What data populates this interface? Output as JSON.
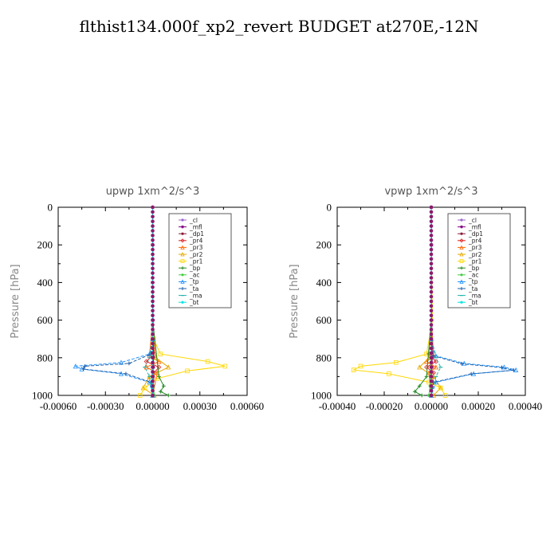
{
  "figure_title": "flthist134.000f_xp2_revert  BUDGET at270E,-12N",
  "chart_data": [
    {
      "type": "line",
      "title": "upwp   1xm^2/s^3",
      "xlabel": "",
      "ylabel": "Pressure  [hPa]",
      "xlim": [
        -0.0006,
        0.0006
      ],
      "ylim": [
        1000,
        0
      ],
      "xticks": [
        "-0.00060",
        "-0.00030",
        "0.00000",
        "0.00030",
        "0.00060"
      ],
      "yticks": [
        "0",
        "200",
        "400",
        "600",
        "800",
        "1000"
      ],
      "legend_position": "top-right",
      "series": [
        {
          "name": "_cl",
          "color": "#9966cc",
          "x": [
            0,
            2e-06,
            0,
            4e-06,
            5e-06,
            0,
            -4e-06,
            0
          ],
          "y": [
            0,
            200,
            400,
            600,
            800,
            850,
            900,
            1000
          ]
        },
        {
          "name": "_mfl",
          "color": "#800080",
          "x": [
            0,
            0,
            0,
            0,
            5e-06,
            4e-06,
            0,
            0
          ],
          "y": [
            0,
            200,
            400,
            600,
            800,
            850,
            900,
            1000
          ]
        },
        {
          "name": "_dp1",
          "color": "#8b1a3a",
          "x": [
            0,
            0,
            0,
            0,
            4e-06,
            3e-06,
            2e-06,
            0
          ],
          "y": [
            0,
            200,
            400,
            600,
            800,
            850,
            900,
            1000
          ]
        },
        {
          "name": "_pr4",
          "color": "#dd2222",
          "x": [
            0,
            0,
            0,
            0,
            1e-05,
            -4e-05,
            4e-05,
            1e-05,
            0
          ],
          "y": [
            0,
            200,
            400,
            600,
            780,
            820,
            850,
            880,
            1000
          ]
        },
        {
          "name": "_pr3",
          "color": "#ff6600",
          "x": [
            0,
            0,
            0,
            0,
            -2e-05,
            4e-05,
            -4e-05,
            3e-05,
            0
          ],
          "y": [
            0,
            200,
            400,
            600,
            790,
            820,
            850,
            880,
            1000
          ]
        },
        {
          "name": "_pr2",
          "color": "#e6a800",
          "x": [
            0,
            0,
            0,
            0,
            2e-05,
            0.0001,
            -2e-05,
            -6e-05,
            1e-05
          ],
          "y": [
            0,
            200,
            400,
            600,
            800,
            850,
            900,
            960,
            1000
          ]
        },
        {
          "name": "_pr1",
          "color": "#ffd700",
          "x": [
            0,
            0,
            5e-06,
            5e-05,
            0.00035,
            0.00046,
            0.00022,
            3e-05,
            -5e-05,
            -8e-05
          ],
          "y": [
            0,
            400,
            700,
            780,
            820,
            845,
            870,
            910,
            960,
            1000
          ]
        },
        {
          "name": "_bp",
          "color": "#228b22",
          "x": [
            0,
            0,
            0,
            0,
            4e-05,
            7e-05,
            5e-05,
            0.0001
          ],
          "y": [
            0,
            200,
            400,
            600,
            900,
            950,
            980,
            1000
          ]
        },
        {
          "name": "_ac",
          "color": "#44cc44",
          "x": [
            0,
            0,
            0,
            0,
            0,
            5e-06,
            1e-05
          ],
          "y": [
            0,
            200,
            400,
            600,
            800,
            950,
            1000
          ]
        },
        {
          "name": "_tp",
          "color": "#1e90ff",
          "x": [
            0,
            0,
            0,
            -2e-05,
            -0.0002,
            -0.00049,
            -0.00045,
            -0.0002,
            -2e-05,
            0
          ],
          "y": [
            0,
            400,
            700,
            780,
            825,
            845,
            860,
            885,
            930,
            1000
          ]
        },
        {
          "name": "_ta",
          "color": "#1f5fa8",
          "x": [
            0,
            0,
            0,
            -1e-05,
            -0.00015,
            -0.00043,
            -0.00044,
            -0.00017,
            -1e-05,
            0
          ],
          "y": [
            0,
            400,
            700,
            780,
            830,
            845,
            860,
            885,
            930,
            1000
          ]
        },
        {
          "name": "_ma",
          "color": "#20b2aa",
          "x": [
            0,
            0,
            0,
            -2e-05,
            -5e-05,
            -2e-05,
            0
          ],
          "y": [
            0,
            400,
            700,
            800,
            850,
            900,
            1000
          ]
        },
        {
          "name": "_bt",
          "color": "#00e5e5",
          "x": [
            0,
            0,
            0,
            0,
            0,
            0
          ],
          "y": [
            0,
            200,
            400,
            600,
            800,
            1000
          ]
        }
      ]
    },
    {
      "type": "line",
      "title": "vpwp   1xm^2/s^3",
      "xlabel": "",
      "ylabel": "Pressure  [hPa]",
      "xlim": [
        -0.0004,
        0.0004
      ],
      "ylim": [
        1000,
        0
      ],
      "xticks": [
        "-0.00040",
        "-0.00020",
        "0.00000",
        "0.00020",
        "0.00040"
      ],
      "yticks": [
        "0",
        "200",
        "400",
        "600",
        "800",
        "1000"
      ],
      "legend_position": "top-right",
      "series": [
        {
          "name": "_cl",
          "color": "#9966cc",
          "x": [
            0,
            2e-06,
            0,
            3e-06,
            4e-06,
            0,
            -3e-06,
            0
          ],
          "y": [
            0,
            200,
            400,
            600,
            800,
            850,
            900,
            1000
          ]
        },
        {
          "name": "_mfl",
          "color": "#800080",
          "x": [
            0,
            0,
            0,
            0,
            4e-06,
            3e-06,
            0,
            0
          ],
          "y": [
            0,
            200,
            400,
            600,
            800,
            850,
            900,
            1000
          ]
        },
        {
          "name": "_dp1",
          "color": "#8b1a3a",
          "x": [
            0,
            0,
            0,
            0,
            3e-06,
            2e-06,
            1e-06,
            0
          ],
          "y": [
            0,
            200,
            400,
            600,
            800,
            850,
            900,
            1000
          ]
        },
        {
          "name": "_pr4",
          "color": "#dd2222",
          "x": [
            0,
            0,
            0,
            0,
            -1e-05,
            2e-05,
            -2e-05,
            1e-05,
            0
          ],
          "y": [
            0,
            200,
            400,
            600,
            780,
            820,
            850,
            880,
            1000
          ]
        },
        {
          "name": "_pr3",
          "color": "#ff6600",
          "x": [
            0,
            0,
            0,
            0,
            1e-05,
            -2e-05,
            2e-05,
            -1e-05,
            0
          ],
          "y": [
            0,
            200,
            400,
            600,
            790,
            820,
            850,
            880,
            1000
          ]
        },
        {
          "name": "_pr2",
          "color": "#e6a800",
          "x": [
            0,
            0,
            0,
            0,
            -1e-05,
            -5e-05,
            1e-05,
            4e-05,
            1e-05
          ],
          "y": [
            0,
            200,
            400,
            600,
            800,
            850,
            900,
            960,
            1000
          ]
        },
        {
          "name": "_pr1",
          "color": "#ffd700",
          "x": [
            0,
            0,
            5e-06,
            -2e-05,
            -0.00015,
            -0.0003,
            -0.00033,
            -0.00018,
            -1e-05,
            4e-05,
            6e-05
          ],
          "y": [
            0,
            200,
            600,
            780,
            825,
            845,
            865,
            885,
            930,
            960,
            1000
          ]
        },
        {
          "name": "_bp",
          "color": "#228b22",
          "x": [
            0,
            0,
            0,
            0,
            -2e-05,
            -5e-05,
            -7e-05,
            -4e-05
          ],
          "y": [
            0,
            200,
            400,
            600,
            900,
            950,
            980,
            1000
          ]
        },
        {
          "name": "_ac",
          "color": "#44cc44",
          "x": [
            0,
            0,
            0,
            0,
            0,
            -5e-06,
            -1e-05
          ],
          "y": [
            0,
            200,
            400,
            600,
            800,
            950,
            1000
          ]
        },
        {
          "name": "_tp",
          "color": "#1e90ff",
          "x": [
            0,
            0,
            0,
            2e-05,
            0.00014,
            0.00031,
            0.00036,
            0.00018,
            2e-05,
            0
          ],
          "y": [
            0,
            400,
            700,
            790,
            830,
            850,
            865,
            885,
            930,
            1000
          ]
        },
        {
          "name": "_ta",
          "color": "#1f5fa8",
          "x": [
            0,
            0,
            0,
            1e-05,
            0.00013,
            0.0003,
            0.00035,
            0.00017,
            1e-05,
            0
          ],
          "y": [
            0,
            400,
            700,
            790,
            832,
            852,
            866,
            886,
            930,
            1000
          ]
        },
        {
          "name": "_ma",
          "color": "#20b2aa",
          "x": [
            0,
            0,
            0,
            2e-05,
            4e-05,
            2e-05,
            0
          ],
          "y": [
            0,
            400,
            700,
            800,
            850,
            900,
            1000
          ]
        },
        {
          "name": "_bt",
          "color": "#00e5e5",
          "x": [
            0,
            0,
            0,
            0,
            0,
            0
          ],
          "y": [
            0,
            200,
            400,
            600,
            800,
            1000
          ]
        }
      ]
    }
  ]
}
